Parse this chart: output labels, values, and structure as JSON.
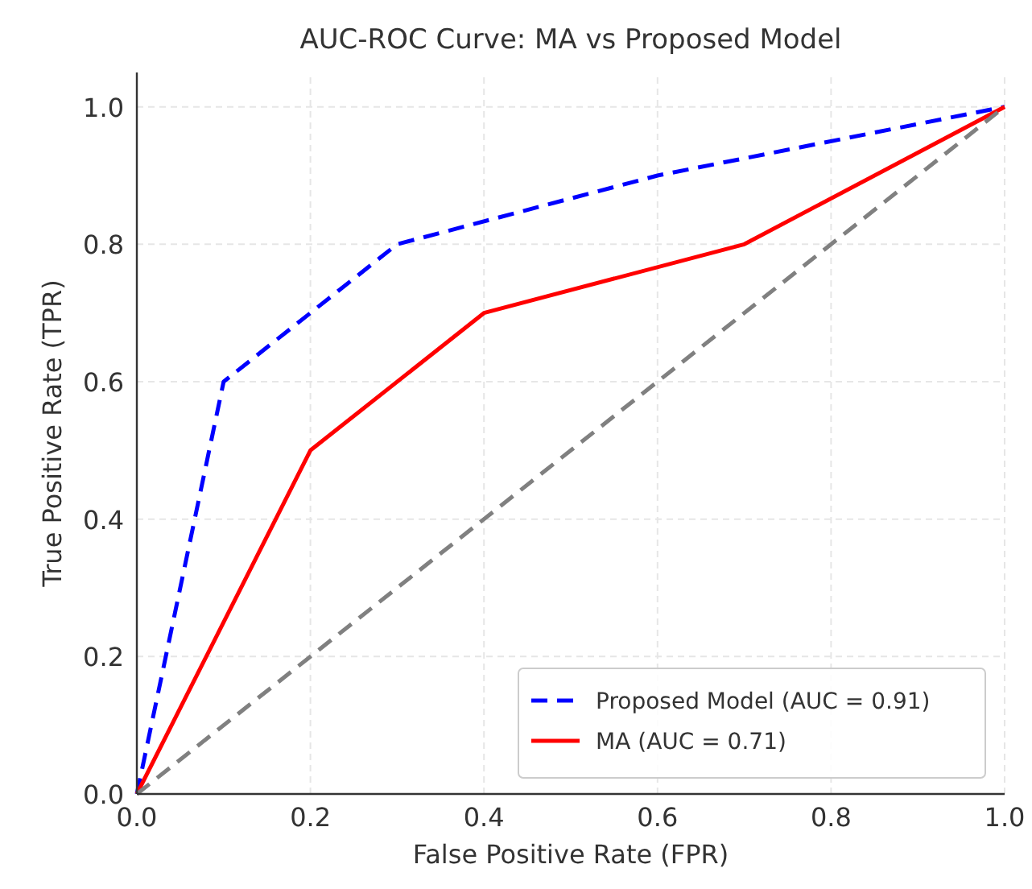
{
  "chart_data": {
    "type": "line",
    "title": "AUC-ROC Curve: MA vs Proposed Model",
    "xlabel": "False Positive Rate (FPR)",
    "ylabel": "True Positive Rate (TPR)",
    "xlim": [
      0,
      1
    ],
    "ylim": [
      0,
      1.05
    ],
    "xticks": [
      {
        "value": 0,
        "label": "0.0"
      },
      0.2,
      0.4,
      0.6,
      0.8,
      {
        "value": 1,
        "label": "1.0"
      }
    ],
    "yticks": [
      {
        "value": 0,
        "label": "0.0"
      },
      0.2,
      0.4,
      0.6,
      0.8,
      {
        "value": 1,
        "label": "1.0"
      }
    ],
    "grid": true,
    "legend": "bottom right",
    "series": [
      {
        "name": "Proposed Model (AUC = 0.91)",
        "color": "#0000ff",
        "line_style": "dashed",
        "x": [
          0,
          0.1,
          0.3,
          0.6,
          1
        ],
        "values": [
          0,
          0.6,
          0.8,
          0.9,
          1
        ]
      },
      {
        "name": "MA (AUC = 0.71)",
        "color": "#ff0000",
        "line_style": "solid",
        "x": [
          0,
          0.2,
          0.4,
          0.7,
          1
        ],
        "values": [
          0,
          0.5,
          0.7,
          0.8,
          1
        ]
      },
      {
        "color": "#808080",
        "line_style": "dashed",
        "x": [
          0,
          1
        ],
        "values": [
          0,
          1
        ]
      }
    ]
  }
}
